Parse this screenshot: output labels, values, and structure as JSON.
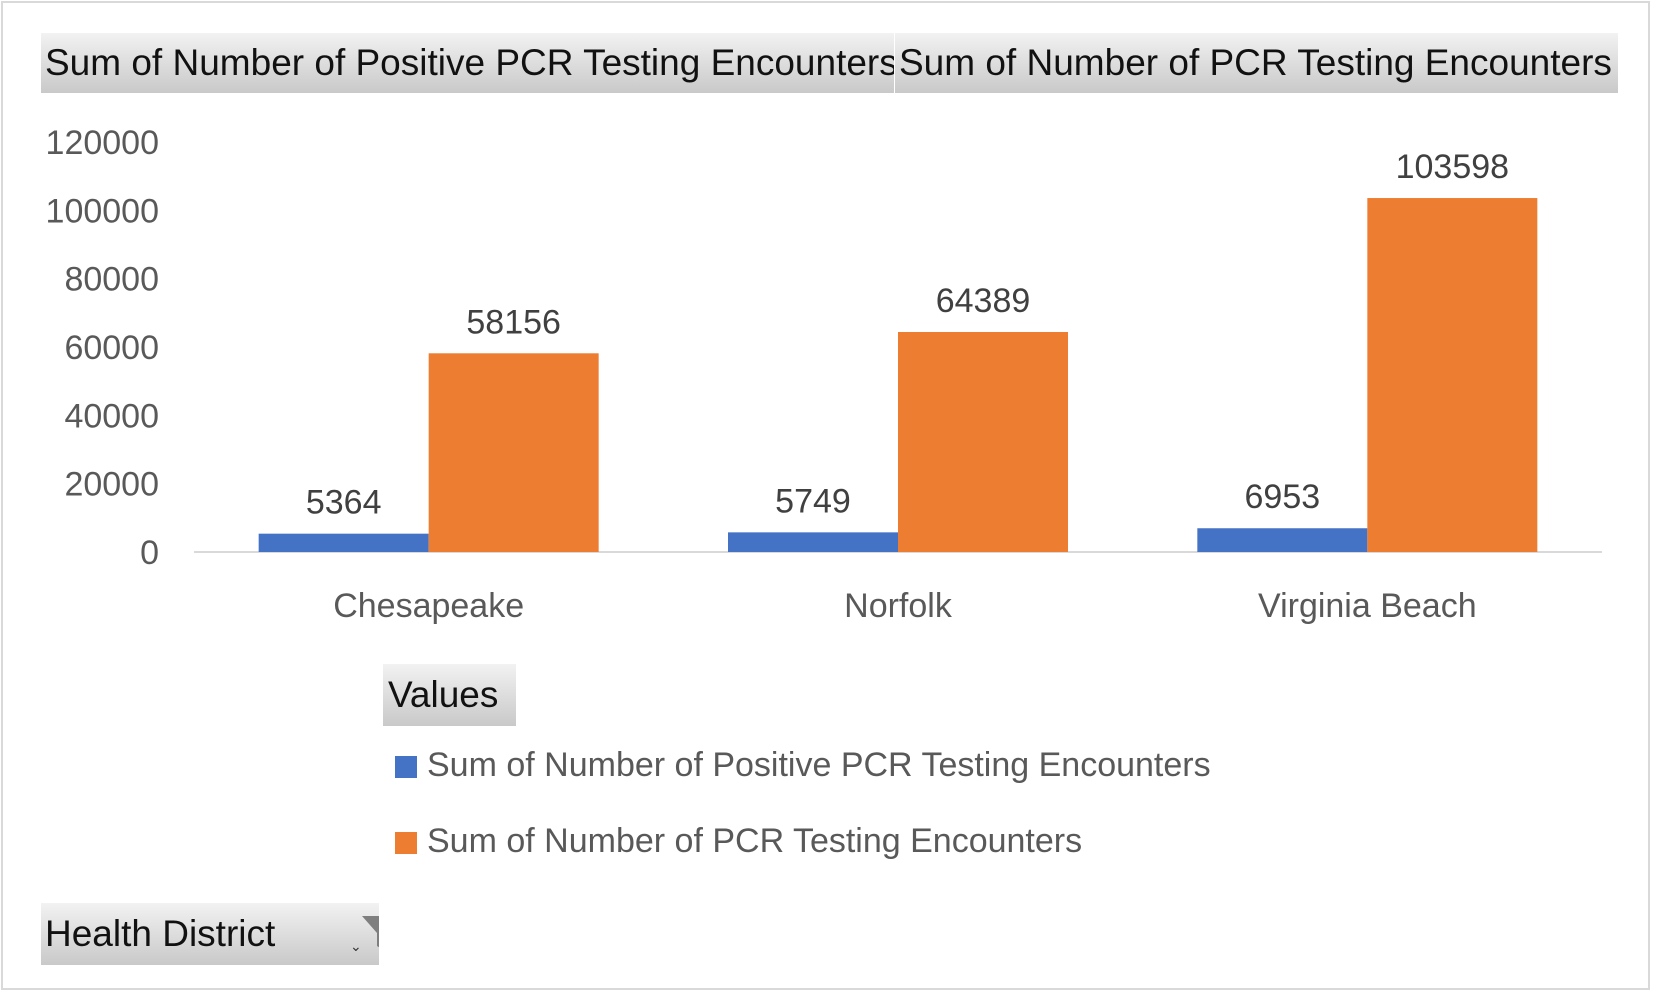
{
  "header": {
    "field_buttons": [
      "Sum of Number of Positive PCR Testing Encounters",
      "Sum of Number of PCR Testing Encounters"
    ]
  },
  "values_button": "Values",
  "filter_button": {
    "label": "Health District",
    "arrow": "⌄",
    "icon": "funnel-filter-icon"
  },
  "chart_data": {
    "type": "bar",
    "categories": [
      "Chesapeake",
      "Norfolk",
      "Virginia Beach"
    ],
    "series": [
      {
        "name": "Sum of Number of Positive PCR Testing Encounters",
        "values": [
          5364,
          5749,
          6953
        ],
        "color": "#4472c4"
      },
      {
        "name": "Sum of Number of PCR Testing Encounters",
        "values": [
          58156,
          64389,
          103598
        ],
        "color": "#ed7d31"
      }
    ],
    "ylim": [
      0,
      120000
    ],
    "yticks": [
      "0",
      "20000",
      "40000",
      "60000",
      "80000",
      "100000",
      "120000"
    ],
    "grid": false,
    "data_labels": true,
    "legend_position": "bottom"
  }
}
